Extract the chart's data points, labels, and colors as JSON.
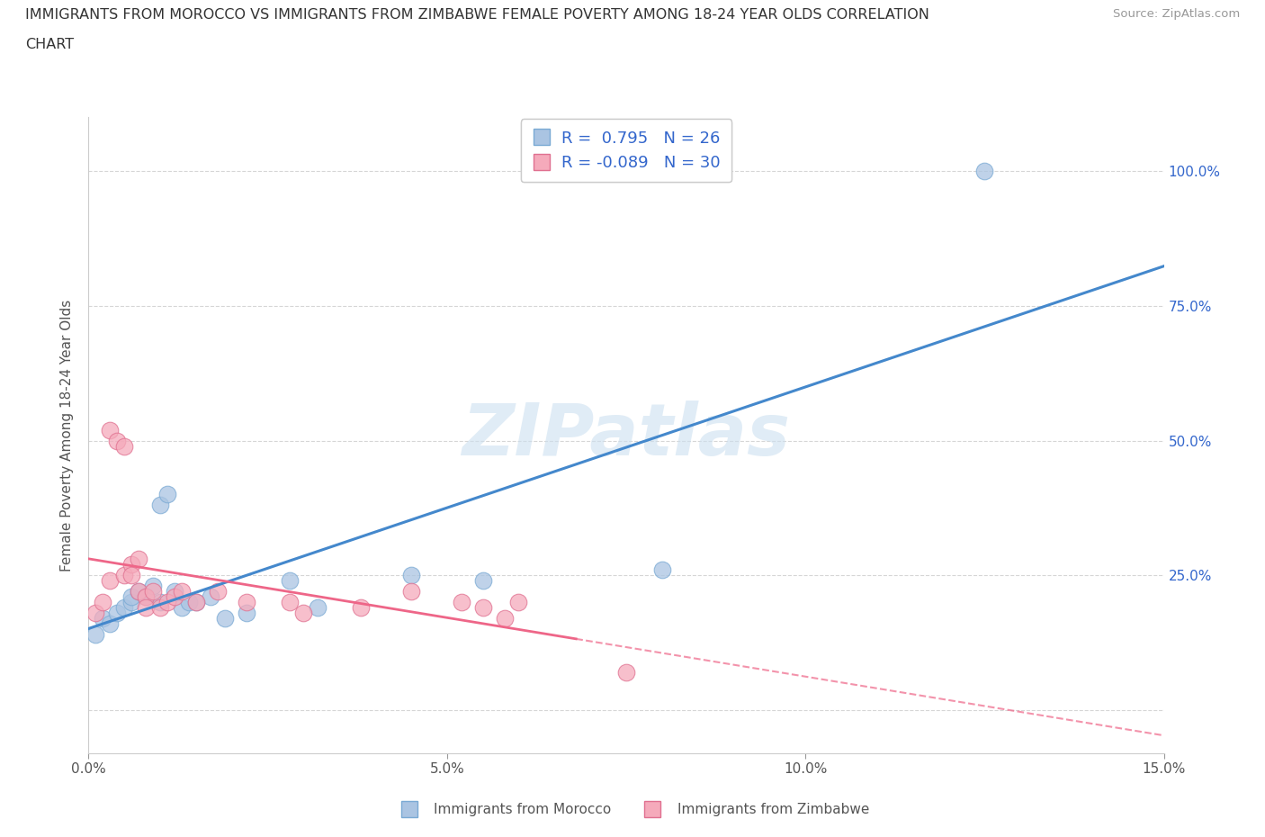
{
  "title_line1": "IMMIGRANTS FROM MOROCCO VS IMMIGRANTS FROM ZIMBABWE FEMALE POVERTY AMONG 18-24 YEAR OLDS CORRELATION",
  "title_line2": "CHART",
  "source": "Source: ZipAtlas.com",
  "ylabel": "Female Poverty Among 18-24 Year Olds",
  "xlim": [
    0.0,
    0.15
  ],
  "ylim": [
    -0.08,
    1.1
  ],
  "yticks": [
    0.0,
    0.25,
    0.5,
    0.75,
    1.0
  ],
  "ytick_labels": [
    "",
    "25.0%",
    "50.0%",
    "75.0%",
    "100.0%"
  ],
  "xticks": [
    0.0,
    0.05,
    0.1,
    0.15
  ],
  "xtick_labels": [
    "0.0%",
    "5.0%",
    "10.0%",
    "15.0%"
  ],
  "morocco_color": "#aac4e2",
  "morocco_edge": "#7aaad4",
  "zimbabwe_color": "#f5aabb",
  "zimbabwe_edge": "#e07090",
  "morocco_line_color": "#4488cc",
  "zimbabwe_line_color": "#ee6688",
  "watermark": "ZIPatlas",
  "watermark_color": "#cce0f0",
  "legend_R_morocco": "0.795",
  "legend_N_morocco": "26",
  "legend_R_zimbabwe": "-0.089",
  "legend_N_zimbabwe": "30",
  "legend_color": "#3366cc",
  "morocco_x": [
    0.001,
    0.002,
    0.003,
    0.004,
    0.005,
    0.006,
    0.006,
    0.007,
    0.008,
    0.009,
    0.01,
    0.01,
    0.011,
    0.012,
    0.013,
    0.014,
    0.015,
    0.017,
    0.019,
    0.022,
    0.028,
    0.032,
    0.045,
    0.055,
    0.08,
    0.125
  ],
  "morocco_y": [
    0.14,
    0.17,
    0.16,
    0.18,
    0.19,
    0.2,
    0.21,
    0.22,
    0.21,
    0.23,
    0.2,
    0.38,
    0.4,
    0.22,
    0.19,
    0.2,
    0.2,
    0.21,
    0.17,
    0.18,
    0.24,
    0.19,
    0.25,
    0.24,
    0.26,
    1.0
  ],
  "zimbabwe_x": [
    0.001,
    0.002,
    0.003,
    0.003,
    0.004,
    0.005,
    0.005,
    0.006,
    0.006,
    0.007,
    0.007,
    0.008,
    0.008,
    0.009,
    0.01,
    0.011,
    0.012,
    0.013,
    0.015,
    0.018,
    0.022,
    0.028,
    0.03,
    0.038,
    0.045,
    0.052,
    0.055,
    0.058,
    0.06,
    0.075
  ],
  "zimbabwe_y": [
    0.18,
    0.2,
    0.24,
    0.52,
    0.5,
    0.49,
    0.25,
    0.27,
    0.25,
    0.28,
    0.22,
    0.21,
    0.19,
    0.22,
    0.19,
    0.2,
    0.21,
    0.22,
    0.2,
    0.22,
    0.2,
    0.2,
    0.18,
    0.19,
    0.22,
    0.2,
    0.19,
    0.17,
    0.2,
    0.07
  ],
  "background_color": "#ffffff",
  "grid_color": "#cccccc"
}
